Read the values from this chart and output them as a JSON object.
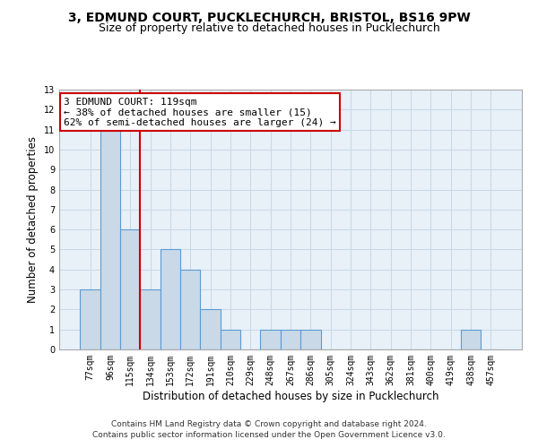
{
  "title": "3, EDMUND COURT, PUCKLECHURCH, BRISTOL, BS16 9PW",
  "subtitle": "Size of property relative to detached houses in Pucklechurch",
  "xlabel": "Distribution of detached houses by size in Pucklechurch",
  "ylabel": "Number of detached properties",
  "categories": [
    "77sqm",
    "96sqm",
    "115sqm",
    "134sqm",
    "153sqm",
    "172sqm",
    "191sqm",
    "210sqm",
    "229sqm",
    "248sqm",
    "267sqm",
    "286sqm",
    "305sqm",
    "324sqm",
    "343sqm",
    "362sqm",
    "381sqm",
    "400sqm",
    "419sqm",
    "438sqm",
    "457sqm"
  ],
  "values": [
    3,
    11,
    6,
    3,
    5,
    4,
    2,
    1,
    0,
    1,
    1,
    1,
    0,
    0,
    0,
    0,
    0,
    0,
    0,
    1,
    0
  ],
  "bar_color": "#c9d9e8",
  "bar_edgecolor": "#5b9bd5",
  "red_line_color": "#cc0000",
  "red_line_index": 2,
  "annotation_line1": "3 EDMUND COURT: 119sqm",
  "annotation_line2": "← 38% of detached houses are smaller (15)",
  "annotation_line3": "62% of semi-detached houses are larger (24) →",
  "annotation_box_color": "#ffffff",
  "annotation_box_edgecolor": "#cc0000",
  "ylim": [
    0,
    13
  ],
  "yticks": [
    0,
    1,
    2,
    3,
    4,
    5,
    6,
    7,
    8,
    9,
    10,
    11,
    12,
    13
  ],
  "footnote1": "Contains HM Land Registry data © Crown copyright and database right 2024.",
  "footnote2": "Contains public sector information licensed under the Open Government Licence v3.0.",
  "background_color": "#ffffff",
  "grid_color": "#c8d8e8",
  "axes_bg_color": "#e8f0f8",
  "title_fontsize": 10,
  "subtitle_fontsize": 9,
  "ylabel_fontsize": 8.5,
  "xlabel_fontsize": 8.5,
  "tick_fontsize": 7,
  "annotation_fontsize": 8,
  "footnote_fontsize": 6.5
}
